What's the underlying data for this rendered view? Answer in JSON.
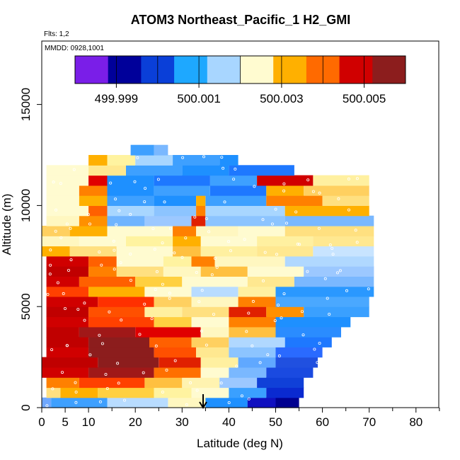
{
  "chart_data": {
    "type": "heatmap",
    "title": "ATOM3 Northeast_Pacific_1 H2_GMI",
    "annotations": [
      "Flts: 1,2",
      "MMDD: 0928,1001"
    ],
    "xlabel": "Latitude (deg N)",
    "ylabel": "Altitude (m)",
    "xlim": [
      0,
      85
    ],
    "ylim": [
      0,
      17500
    ],
    "x_ticks": [
      0,
      5,
      10,
      20,
      30,
      40,
      50,
      60,
      70,
      80
    ],
    "y_ticks": [
      0,
      5000,
      10000,
      15000
    ],
    "grid": false,
    "legend": "colorbar-top",
    "colorbar": {
      "range": [
        499.998,
        500.006
      ],
      "labels": [
        {
          "value": 499.999,
          "text": "499.999"
        },
        {
          "value": 500.001,
          "text": "500.001"
        },
        {
          "value": 500.003,
          "text": "500.003"
        },
        {
          "value": 500.005,
          "text": "500.005"
        }
      ],
      "colors": [
        "#7a1ee8",
        "#00009a",
        "#0a3fd8",
        "#1ea8ff",
        "#a8d6ff",
        "#fffbd0",
        "#ffb000",
        "#ff6a00",
        "#d00000",
        "#8c1d1d"
      ]
    },
    "marker": {
      "x": 34.5,
      "label": "arrow"
    },
    "layers": [
      {
        "alt": 250,
        "segments": [
          [
            0,
            2,
            "#6fa8ff"
          ],
          [
            2,
            14,
            "#3ea0ff"
          ],
          [
            14,
            27,
            "#b8dcff"
          ],
          [
            27,
            35,
            "#fff7c0"
          ],
          [
            35,
            44,
            "#1e90ff"
          ],
          [
            44,
            50,
            "#1010c0"
          ],
          [
            50,
            55,
            "#000090"
          ]
        ]
      },
      {
        "alt": 750,
        "segments": [
          [
            1,
            4,
            "#ffe080"
          ],
          [
            4,
            12,
            "#ffb000"
          ],
          [
            12,
            24,
            "#ffd040"
          ],
          [
            24,
            32,
            "#fff3a0"
          ],
          [
            32,
            40,
            "#fffbd0"
          ],
          [
            40,
            48,
            "#3aa0ff"
          ],
          [
            48,
            56,
            "#0a2ad0"
          ]
        ]
      },
      {
        "alt": 1250,
        "segments": [
          [
            1,
            8,
            "#ff8000"
          ],
          [
            8,
            22,
            "#ff4000"
          ],
          [
            22,
            30,
            "#ffc040"
          ],
          [
            30,
            38,
            "#fff3b0"
          ],
          [
            38,
            46,
            "#9cc8ff"
          ],
          [
            46,
            56,
            "#1040d8"
          ]
        ]
      },
      {
        "alt": 1750,
        "segments": [
          [
            0,
            10,
            "#d00000"
          ],
          [
            10,
            24,
            "#a01818"
          ],
          [
            24,
            34,
            "#ff7000"
          ],
          [
            34,
            40,
            "#fffbd0"
          ],
          [
            40,
            48,
            "#7ab8ff"
          ],
          [
            48,
            58,
            "#1a4ae0"
          ]
        ]
      },
      {
        "alt": 2250,
        "segments": [
          [
            0,
            12,
            "#c00000"
          ],
          [
            12,
            25,
            "#8c1d1d"
          ],
          [
            25,
            34,
            "#e02000"
          ],
          [
            34,
            42,
            "#fff0a0"
          ],
          [
            42,
            50,
            "#60a8ff"
          ],
          [
            50,
            59,
            "#2050e0"
          ]
        ]
      },
      {
        "alt": 2750,
        "segments": [
          [
            1,
            10,
            "#d00000"
          ],
          [
            10,
            24,
            "#8c1d1d"
          ],
          [
            24,
            33,
            "#ff5000"
          ],
          [
            33,
            40,
            "#ffe890"
          ],
          [
            40,
            50,
            "#8cc4ff"
          ],
          [
            50,
            60,
            "#2a6aff"
          ]
        ]
      },
      {
        "alt": 3250,
        "segments": [
          [
            1,
            10,
            "#c00000"
          ],
          [
            10,
            23,
            "#8c1d1d"
          ],
          [
            23,
            32,
            "#ff6000"
          ],
          [
            32,
            40,
            "#ffd060"
          ],
          [
            40,
            52,
            "#b0d8ff"
          ],
          [
            52,
            62,
            "#1e78ff"
          ]
        ]
      },
      {
        "alt": 3750,
        "segments": [
          [
            1,
            8,
            "#c00000"
          ],
          [
            8,
            20,
            "#a01818"
          ],
          [
            20,
            34,
            "#e00000"
          ],
          [
            34,
            40,
            "#fff7c0"
          ],
          [
            40,
            50,
            "#ffc040"
          ],
          [
            50,
            64,
            "#2a8cff"
          ]
        ]
      },
      {
        "alt": 4250,
        "segments": [
          [
            1,
            10,
            "#d00000"
          ],
          [
            10,
            24,
            "#ff4000"
          ],
          [
            24,
            32,
            "#ffd040"
          ],
          [
            32,
            40,
            "#fffbd0"
          ],
          [
            40,
            50,
            "#ff8000"
          ],
          [
            50,
            66,
            "#1e90ff"
          ]
        ]
      },
      {
        "alt": 4750,
        "segments": [
          [
            1,
            10,
            "#c00000"
          ],
          [
            10,
            22,
            "#ff5000"
          ],
          [
            22,
            30,
            "#fff0a0"
          ],
          [
            30,
            40,
            "#ffe080"
          ],
          [
            40,
            48,
            "#e02000"
          ],
          [
            48,
            56,
            "#ff9000"
          ],
          [
            56,
            70,
            "#3aa0ff"
          ]
        ]
      },
      {
        "alt": 5250,
        "segments": [
          [
            1,
            12,
            "#d00000"
          ],
          [
            12,
            24,
            "#ff3000"
          ],
          [
            24,
            32,
            "#ffd060"
          ],
          [
            32,
            42,
            "#fff7c0"
          ],
          [
            42,
            50,
            "#ff8000"
          ],
          [
            50,
            70,
            "#4aa8ff"
          ]
        ]
      },
      {
        "alt": 5750,
        "segments": [
          [
            1,
            10,
            "#ff4000"
          ],
          [
            10,
            22,
            "#ffb000"
          ],
          [
            22,
            32,
            "#fffbd0"
          ],
          [
            32,
            42,
            "#b8dcff"
          ],
          [
            42,
            50,
            "#fff0a0"
          ],
          [
            50,
            71,
            "#2a98ff"
          ]
        ]
      },
      {
        "alt": 6250,
        "segments": [
          [
            1,
            8,
            "#d00000"
          ],
          [
            8,
            20,
            "#ff6000"
          ],
          [
            20,
            30,
            "#ffd040"
          ],
          [
            30,
            44,
            "#fffbd0"
          ],
          [
            44,
            54,
            "#ffe890"
          ],
          [
            54,
            71,
            "#7ab8ff"
          ]
        ]
      },
      {
        "alt": 6750,
        "segments": [
          [
            1,
            10,
            "#c00000"
          ],
          [
            10,
            16,
            "#ff8000"
          ],
          [
            16,
            26,
            "#ffe080"
          ],
          [
            26,
            34,
            "#fff7c0"
          ],
          [
            34,
            44,
            "#ffc040"
          ],
          [
            44,
            56,
            "#fffbd0"
          ],
          [
            56,
            71,
            "#9cc8ff"
          ]
        ]
      },
      {
        "alt": 7250,
        "segments": [
          [
            1,
            10,
            "#d00000"
          ],
          [
            10,
            16,
            "#ff6000"
          ],
          [
            16,
            26,
            "#fffbd0"
          ],
          [
            26,
            32,
            "#fff3a0"
          ],
          [
            32,
            37,
            "#ff8000"
          ],
          [
            37,
            52,
            "#fff7c0"
          ],
          [
            52,
            71,
            "#b0d8ff"
          ]
        ]
      },
      {
        "alt": 7750,
        "segments": [
          [
            0,
            6,
            "#ffb000"
          ],
          [
            6,
            16,
            "#ffe080"
          ],
          [
            16,
            28,
            "#fffbd0"
          ],
          [
            28,
            34,
            "#ffc040"
          ],
          [
            34,
            46,
            "#fff0a0"
          ],
          [
            46,
            58,
            "#ffe890"
          ],
          [
            58,
            71,
            "#c8e4ff"
          ]
        ]
      },
      {
        "alt": 8250,
        "segments": [
          [
            0,
            8,
            "#fff7c0"
          ],
          [
            8,
            18,
            "#fffbd0"
          ],
          [
            18,
            28,
            "#fff3a0"
          ],
          [
            28,
            34,
            "#ffb000"
          ],
          [
            34,
            46,
            "#fffbd0"
          ],
          [
            46,
            58,
            "#fff0a0"
          ],
          [
            58,
            71,
            "#ffe890"
          ]
        ]
      },
      {
        "alt": 8750,
        "segments": [
          [
            0,
            6,
            "#ffd060"
          ],
          [
            6,
            14,
            "#ffb000"
          ],
          [
            14,
            28,
            "#fffbd0"
          ],
          [
            28,
            33,
            "#ff8000"
          ],
          [
            33,
            42,
            "#fff7c0"
          ],
          [
            42,
            52,
            "#fffbd0"
          ],
          [
            52,
            71,
            "#ffe080"
          ]
        ]
      },
      {
        "alt": 9250,
        "segments": [
          [
            1,
            8,
            "#fff7c0"
          ],
          [
            8,
            14,
            "#ff9000"
          ],
          [
            14,
            22,
            "#6fb4ff"
          ],
          [
            22,
            32,
            "#9cc8ff"
          ],
          [
            32,
            35,
            "#e02000"
          ],
          [
            35,
            52,
            "#8cc4ff"
          ],
          [
            52,
            71,
            "#7ab8ff"
          ]
        ]
      },
      {
        "alt": 9750,
        "segments": [
          [
            1,
            10,
            "#fffbd0"
          ],
          [
            10,
            14,
            "#ff6000"
          ],
          [
            14,
            24,
            "#a8d6ff"
          ],
          [
            24,
            33,
            "#8cc4ff"
          ],
          [
            33,
            35,
            "#ff8000"
          ],
          [
            35,
            52,
            "#a8d6ff"
          ],
          [
            52,
            70,
            "#ffb000"
          ]
        ]
      },
      {
        "alt": 10250,
        "segments": [
          [
            1,
            8,
            "#fffbd0"
          ],
          [
            8,
            14,
            "#ffb000"
          ],
          [
            14,
            24,
            "#3ea0ff"
          ],
          [
            24,
            33,
            "#1e90ff"
          ],
          [
            33,
            35,
            "#ffb000"
          ],
          [
            35,
            48,
            "#3ea0ff"
          ],
          [
            48,
            60,
            "#ff8000"
          ],
          [
            60,
            70,
            "#ffe080"
          ]
        ]
      },
      {
        "alt": 10750,
        "segments": [
          [
            1,
            8,
            "#fffbd0"
          ],
          [
            8,
            14,
            "#ff8000"
          ],
          [
            14,
            24,
            "#1e90ff"
          ],
          [
            24,
            36,
            "#3ea0ff"
          ],
          [
            36,
            48,
            "#1e78ff"
          ],
          [
            48,
            56,
            "#ffb000"
          ],
          [
            56,
            70,
            "#ffd060"
          ]
        ]
      },
      {
        "alt": 11250,
        "segments": [
          [
            1,
            10,
            "#fffbd0"
          ],
          [
            10,
            14,
            "#e00000"
          ],
          [
            14,
            24,
            "#1e90ff"
          ],
          [
            24,
            36,
            "#1e78ff"
          ],
          [
            36,
            46,
            "#3ea0ff"
          ],
          [
            46,
            58,
            "#d00000"
          ],
          [
            58,
            70,
            "#fff0a0"
          ]
        ]
      },
      {
        "alt": 11750,
        "segments": [
          [
            1,
            10,
            "#fffbd0"
          ],
          [
            10,
            18,
            "#ffe890"
          ],
          [
            18,
            30,
            "#3ea0ff"
          ],
          [
            30,
            40,
            "#1e90ff"
          ],
          [
            40,
            54,
            "#1e78ff"
          ]
        ]
      },
      {
        "alt": 12250,
        "segments": [
          [
            10,
            14,
            "#ffb000"
          ],
          [
            14,
            20,
            "#fff3a0"
          ],
          [
            20,
            28,
            "#a8d6ff"
          ],
          [
            28,
            38,
            "#3ea0ff"
          ],
          [
            38,
            42,
            "#1e90ff"
          ]
        ]
      },
      {
        "alt": 12750,
        "segments": [
          [
            19,
            24,
            "#3ea0ff"
          ],
          [
            24,
            27,
            "#7ab8ff"
          ]
        ]
      }
    ]
  }
}
